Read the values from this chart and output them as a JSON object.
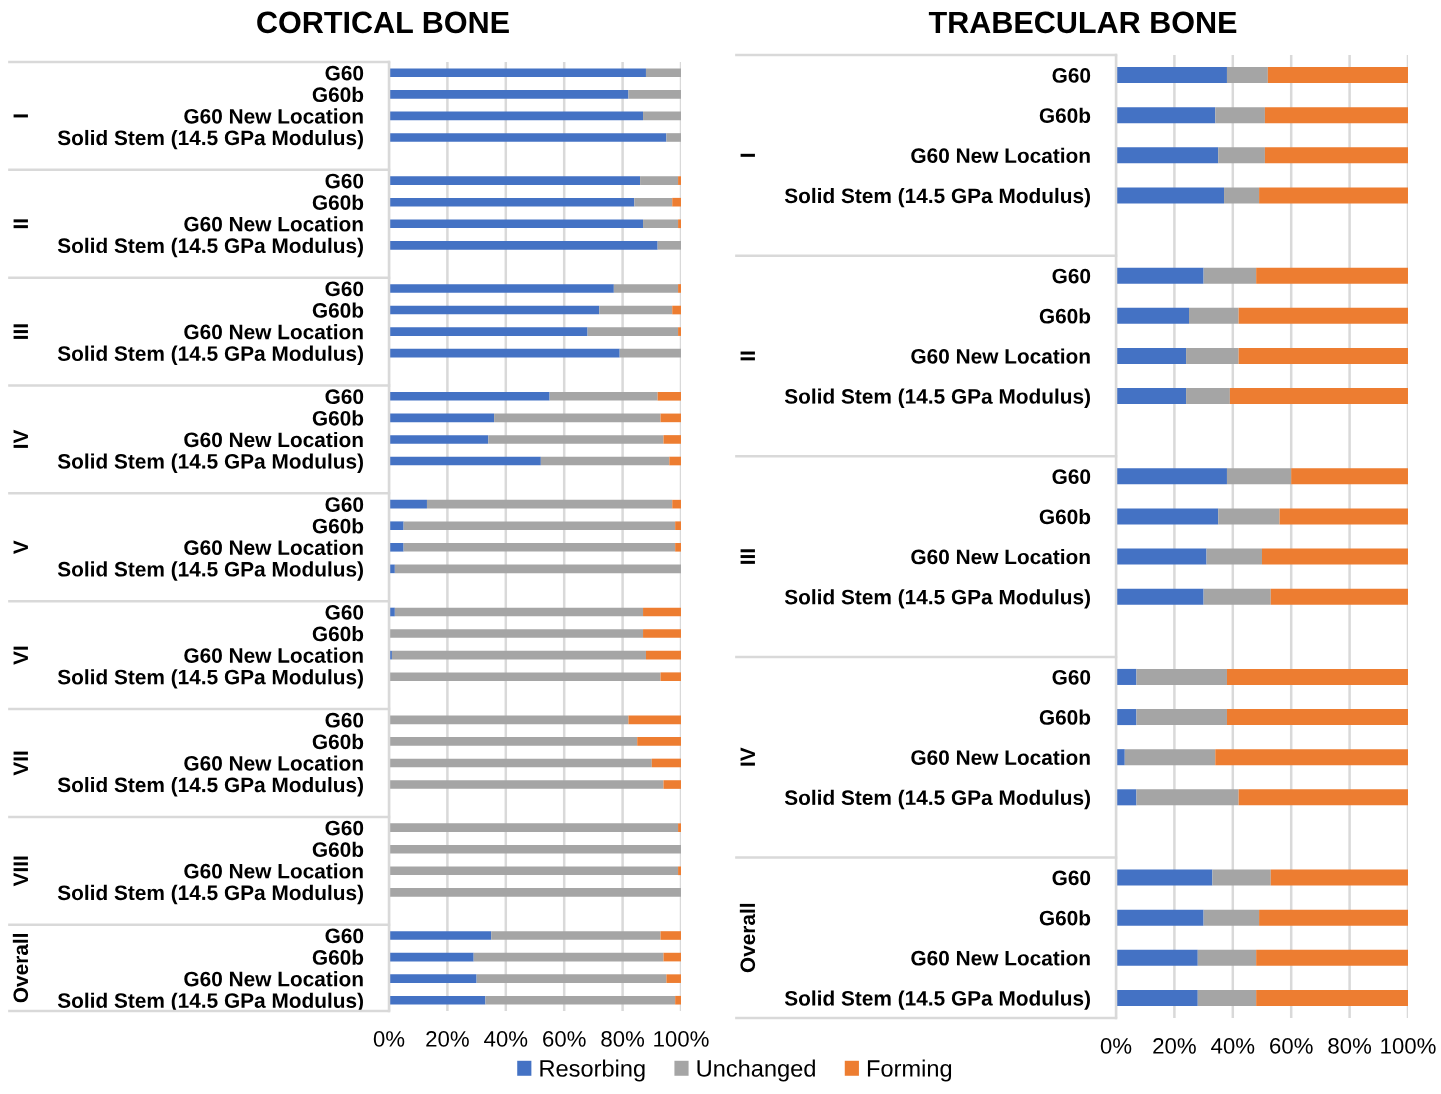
{
  "chart_data": [
    {
      "type": "bar",
      "orientation": "horizontal",
      "stacked": true,
      "title": "CORTICAL BONE",
      "categories": [
        "G60",
        "G60b",
        "G60 New Location",
        "Solid Stem (14.5 GPa Modulus)",
        null,
        "G60",
        "G60b",
        "G60 New Location",
        "Solid Stem (14.5 GPa Modulus)",
        null,
        "G60",
        "G60b",
        "G60 New Location",
        "Solid Stem (14.5 GPa Modulus)",
        null,
        "G60",
        "G60b",
        "G60 New Location",
        "Solid Stem (14.5 GPa Modulus)",
        null,
        "G60",
        "G60b",
        "G60 New Location",
        "Solid Stem (14.5 GPa Modulus)",
        null,
        "G60",
        "G60b",
        "G60 New Location",
        "Solid Stem (14.5 GPa Modulus)",
        null,
        "G60",
        "G60b",
        "G60 New Location",
        "Solid Stem (14.5 GPa Modulus)",
        null,
        "G60",
        "G60b",
        "G60 New Location",
        "Solid Stem (14.5 GPa Modulus)",
        null,
        "G60",
        "G60b",
        "G60 New Location",
        "Solid Stem (14.5 GPa Modulus)"
      ],
      "annotations": [
        "I",
        "II",
        "III",
        "IV",
        "V",
        "VI",
        "VII",
        "VIII",
        "Overall"
      ],
      "series": [
        {
          "name": "Resorbing",
          "color": "#4472c4",
          "values": [
            88,
            82,
            87,
            95,
            null,
            86,
            84,
            87,
            92,
            null,
            77,
            72,
            68,
            79,
            null,
            55,
            36,
            34,
            52,
            null,
            13,
            5,
            5,
            2,
            null,
            2,
            0,
            1,
            0,
            null,
            0,
            0,
            0,
            0,
            null,
            0,
            0,
            0,
            0,
            null,
            35,
            29,
            30,
            33
          ]
        },
        {
          "name": "Unchanged",
          "color": "#a5a5a5",
          "values": [
            12,
            18,
            13,
            5,
            null,
            13,
            13,
            12,
            8,
            null,
            22,
            25,
            31,
            21,
            null,
            37,
            57,
            60,
            44,
            null,
            84,
            93,
            93,
            98,
            null,
            85,
            87,
            87,
            93,
            null,
            82,
            85,
            90,
            94,
            null,
            99,
            100,
            99,
            100,
            null,
            58,
            65,
            65,
            65
          ]
        },
        {
          "name": "Forming",
          "color": "#ed7d31",
          "values": [
            0,
            0,
            0,
            0,
            null,
            1,
            3,
            1,
            0,
            null,
            1,
            3,
            1,
            0,
            null,
            8,
            7,
            6,
            4,
            null,
            3,
            2,
            2,
            0,
            null,
            13,
            13,
            12,
            7,
            null,
            18,
            15,
            10,
            6,
            null,
            1,
            0,
            1,
            0,
            null,
            7,
            6,
            5,
            2
          ]
        }
      ],
      "xlim": [
        0,
        100
      ],
      "xticks": [
        {
          "value": 0,
          "label": "0%"
        },
        {
          "value": 20,
          "label": "20%"
        },
        {
          "value": 40,
          "label": "40%"
        },
        {
          "value": 60,
          "label": "60%"
        },
        {
          "value": 80,
          "label": "80%"
        },
        {
          "value": 100,
          "label": "100%"
        }
      ],
      "grid": "x",
      "legend": "bottom"
    },
    {
      "type": "bar",
      "orientation": "horizontal",
      "stacked": true,
      "title": "TRABECULAR BONE",
      "categories": [
        "G60",
        "G60b",
        "G60 New Location",
        "Solid Stem (14.5 GPa Modulus)",
        null,
        "G60",
        "G60b",
        "G60 New Location",
        "Solid Stem (14.5 GPa Modulus)",
        null,
        "G60",
        "G60b",
        "G60 New Location",
        "Solid Stem (14.5 GPa Modulus)",
        null,
        "G60",
        "G60b",
        "G60 New Location",
        "Solid Stem (14.5 GPa Modulus)",
        null,
        "G60",
        "G60b",
        "G60 New Location",
        "Solid Stem (14.5 GPa Modulus)"
      ],
      "annotations": [
        "I",
        "II",
        "III",
        "IV",
        "Overall"
      ],
      "series": [
        {
          "name": "Resorbing",
          "color": "#4472c4",
          "values": [
            38,
            34,
            35,
            37,
            null,
            30,
            25,
            24,
            24,
            null,
            38,
            35,
            31,
            30,
            null,
            7,
            7,
            3,
            7,
            null,
            33,
            30,
            28,
            28
          ]
        },
        {
          "name": "Unchanged",
          "color": "#a5a5a5",
          "values": [
            14,
            17,
            16,
            12,
            null,
            18,
            17,
            18,
            15,
            null,
            22,
            21,
            19,
            23,
            null,
            31,
            31,
            31,
            35,
            null,
            20,
            19,
            20,
            20
          ]
        },
        {
          "name": "Forming",
          "color": "#ed7d31",
          "values": [
            48,
            49,
            49,
            51,
            null,
            52,
            58,
            58,
            61,
            null,
            40,
            44,
            50,
            47,
            null,
            62,
            62,
            66,
            58,
            null,
            47,
            51,
            52,
            52
          ]
        }
      ],
      "xlim": [
        0,
        100
      ],
      "xticks": [
        {
          "value": 0,
          "label": "0%"
        },
        {
          "value": 20,
          "label": "20%"
        },
        {
          "value": 40,
          "label": "40%"
        },
        {
          "value": 60,
          "label": "60%"
        },
        {
          "value": 80,
          "label": "80%"
        },
        {
          "value": 100,
          "label": "100%"
        }
      ],
      "grid": "x",
      "legend": "bottom"
    }
  ]
}
